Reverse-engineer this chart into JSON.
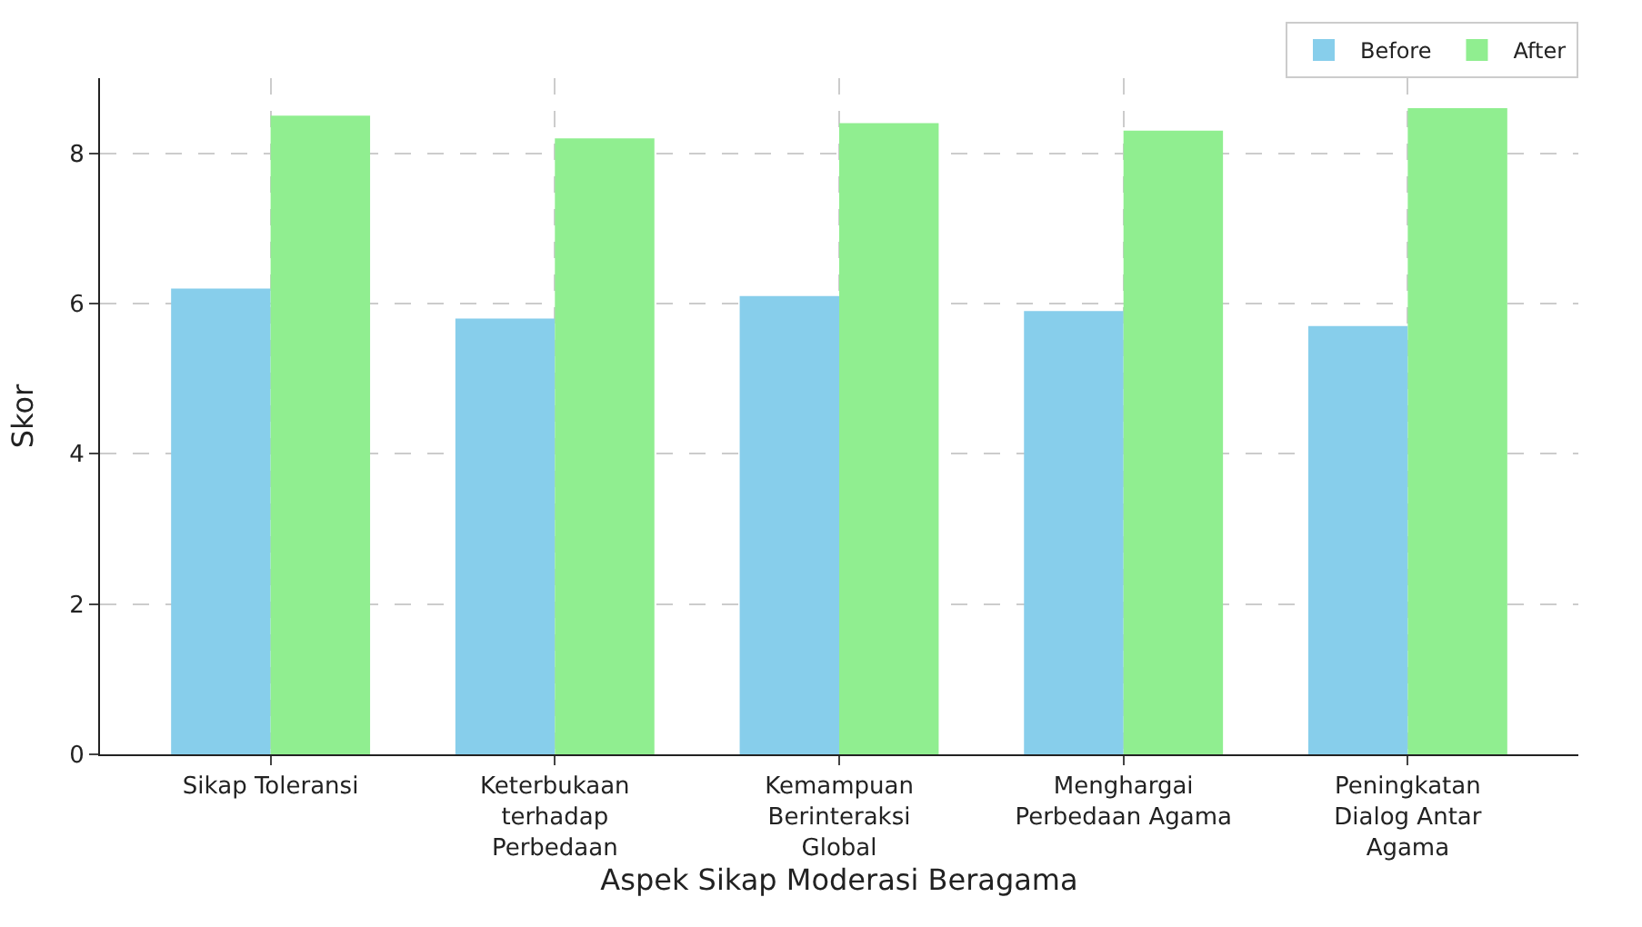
{
  "chart_data": {
    "type": "bar",
    "xlabel": "Aspek Sikap Moderasi Beragama",
    "ylabel": "Skor",
    "categories": [
      "Sikap Toleransi",
      "Keterbukaan terhadap Perbedaan",
      "Kemampuan Berinteraksi Global",
      "Menghargai Perbedaan Agama",
      "Peningkatan Dialog Antar Agama"
    ],
    "series": [
      {
        "name": "Before",
        "color": "#87ceeb",
        "values": [
          6.2,
          5.8,
          6.1,
          5.9,
          5.7
        ]
      },
      {
        "name": "After",
        "color": "#90ee90",
        "values": [
          8.5,
          8.2,
          8.4,
          8.3,
          8.6
        ]
      }
    ],
    "ylim": [
      0,
      9.0
    ],
    "yticks": [
      0,
      2,
      4,
      6,
      8
    ],
    "grid": true,
    "legend": "top right"
  }
}
